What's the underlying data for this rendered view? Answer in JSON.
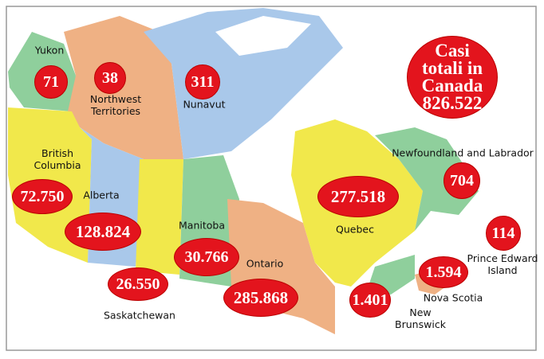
{
  "title": "Casi totali in Canada",
  "total": "826.522",
  "regions": [
    {
      "name": "Yukon",
      "cases": "71"
    },
    {
      "name": "Northwest Territories",
      "cases": "38"
    },
    {
      "name": "Nunavut",
      "cases": "311"
    },
    {
      "name": "British Columbia",
      "cases": "72.750"
    },
    {
      "name": "Alberta",
      "cases": "128.824"
    },
    {
      "name": "Saskatchewan",
      "cases": "26.550"
    },
    {
      "name": "Manitoba",
      "cases": "30.766"
    },
    {
      "name": "Ontario",
      "cases": "285.868"
    },
    {
      "name": "Quebec",
      "cases": "277.518"
    },
    {
      "name": "Newfoundland and Labrador",
      "cases": "704"
    },
    {
      "name": "Prince Edward Island",
      "cases": "114"
    },
    {
      "name": "Nova Scotia",
      "cases": "1.594"
    },
    {
      "name": "New Brunswick",
      "cases": "1.401"
    }
  ]
}
